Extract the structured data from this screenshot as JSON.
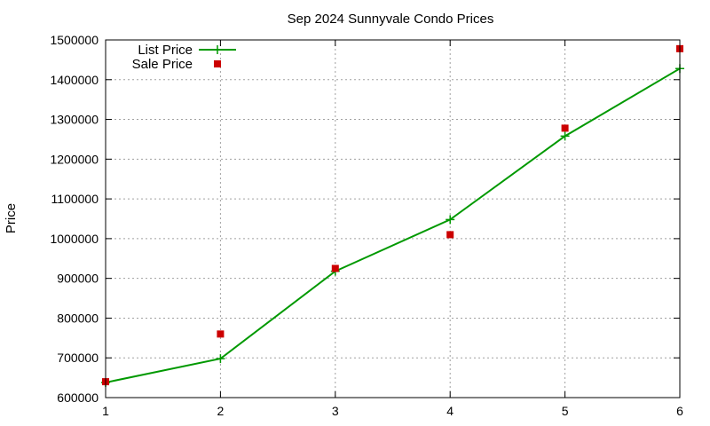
{
  "chart_data": {
    "type": "line",
    "title": "Sep 2024 Sunnyvale Condo Prices",
    "xlabel": "",
    "ylabel": "Price",
    "xlim": [
      1,
      6
    ],
    "ylim": [
      600000,
      1500000
    ],
    "x_ticks": [
      "1",
      "2",
      "3",
      "4",
      "5",
      "6"
    ],
    "y_ticks": [
      "600000",
      "700000",
      "800000",
      "900000",
      "1000000",
      "1100000",
      "1200000",
      "1300000",
      "1400000",
      "1500000"
    ],
    "grid": true,
    "legend_position": "top-left",
    "series": [
      {
        "name": "List Price",
        "style": "linespoints",
        "marker": "plus",
        "color": "#009900",
        "x": [
          1,
          2,
          3,
          4,
          5,
          6
        ],
        "y": [
          638000,
          698000,
          918000,
          1048000,
          1258000,
          1428000
        ]
      },
      {
        "name": "Sale Price",
        "style": "points",
        "marker": "square",
        "color": "#cc0000",
        "x": [
          1,
          2,
          3,
          4,
          5,
          6
        ],
        "y": [
          640000,
          760000,
          925000,
          1010000,
          1278000,
          1478000
        ]
      }
    ]
  }
}
